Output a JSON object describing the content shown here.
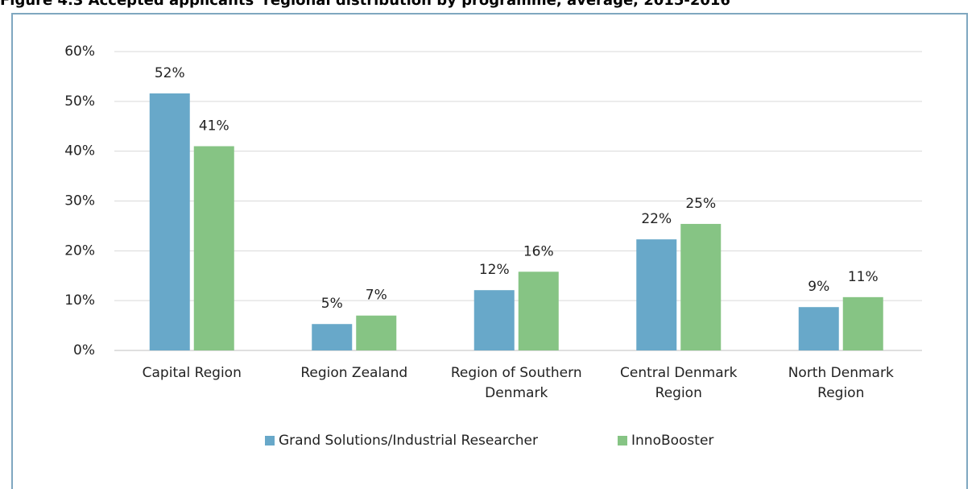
{
  "chart_data": {
    "type": "bar",
    "title": "Figure 4.3 Accepted applicants' regional distribution by programme, average, 2015-2016",
    "categories": [
      "Capital Region",
      "Region Zealand",
      "Region of Southern Denmark",
      "Central Denmark Region",
      "North Denmark Region"
    ],
    "series": [
      {
        "name": "Grand Solutions/Industrial Researcher",
        "color": "#68a8c9",
        "values": [
          51.6,
          5.3,
          12.1,
          22.3,
          8.7
        ],
        "value_labels": [
          "52%",
          "5%",
          "12%",
          "22%",
          "9%"
        ]
      },
      {
        "name": "InnoBooster",
        "color": "#86c484",
        "values": [
          41.0,
          7.0,
          15.8,
          25.4,
          10.7
        ],
        "value_labels": [
          "41%",
          "7%",
          "16%",
          "25%",
          "11%"
        ]
      }
    ],
    "ylim": [
      0,
      60
    ],
    "yticks": [
      {
        "value": 0,
        "label": "0%"
      },
      {
        "value": 10,
        "label": "10%"
      },
      {
        "value": 20,
        "label": "20%"
      },
      {
        "value": 30,
        "label": "30%"
      },
      {
        "value": 40,
        "label": "40%"
      },
      {
        "value": 50,
        "label": "50%"
      },
      {
        "value": 60,
        "label": "60%"
      }
    ],
    "grid": true,
    "legend": "bottom"
  }
}
